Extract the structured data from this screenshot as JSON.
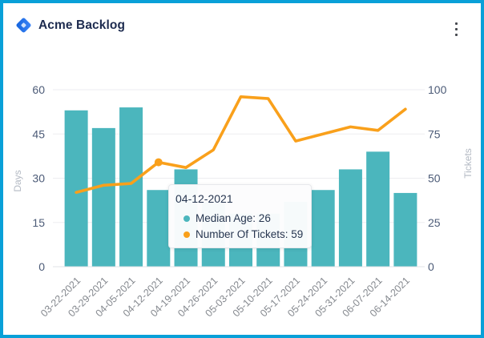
{
  "header": {
    "title": "Acme Backlog",
    "logo_icon": "diamond-logo",
    "menu_icon": "kebab-menu"
  },
  "colors": {
    "window_border": "#09a0d8",
    "bar": "#4bb6bd",
    "line": "#f9a01b",
    "tick_label": "#4c5b77",
    "date_label": "#85898f",
    "axis_title": "#b3b9c3",
    "gridline": "#ededf0",
    "axis_line": "#e2e3e7",
    "title_text": "#1d2b4f",
    "tooltip_text": "#273650"
  },
  "chart_data": {
    "type": "combo-bar-line",
    "categories": [
      "03-22-2021",
      "03-29-2021",
      "04-05-2021",
      "04-12-2021",
      "04-19-2021",
      "04-26-2021",
      "05-03-2021",
      "05-10-2021",
      "05-17-2021",
      "05-24-2021",
      "05-31-2021",
      "06-07-2021",
      "06-14-2021"
    ],
    "series": [
      {
        "name": "Median Age",
        "type": "bar",
        "axis": "left",
        "color": "#4bb6bd",
        "values": [
          53,
          47,
          54,
          26,
          33,
          22,
          18,
          18,
          22,
          26,
          33,
          39,
          25
        ]
      },
      {
        "name": "Number Of Tickets",
        "type": "line",
        "axis": "right",
        "color": "#f9a01b",
        "values": [
          42,
          46,
          47,
          59,
          56,
          66,
          96,
          95,
          71,
          75,
          79,
          77,
          89
        ]
      }
    ],
    "left_axis": {
      "title": "Days",
      "range": [
        0,
        60
      ],
      "ticks": [
        0,
        15,
        30,
        45,
        60
      ]
    },
    "right_axis": {
      "title": "Tickets",
      "range": [
        0,
        100
      ],
      "ticks": [
        0,
        25,
        50,
        75,
        100
      ]
    },
    "grid": true,
    "legend": "none",
    "highlight_index": 3
  },
  "tooltip": {
    "title": "04-12-2021",
    "items": [
      {
        "label": "Median Age: 26",
        "color": "#4bb6bd"
      },
      {
        "label": "Number Of Tickets: 59",
        "color": "#f9a01b"
      }
    ]
  }
}
